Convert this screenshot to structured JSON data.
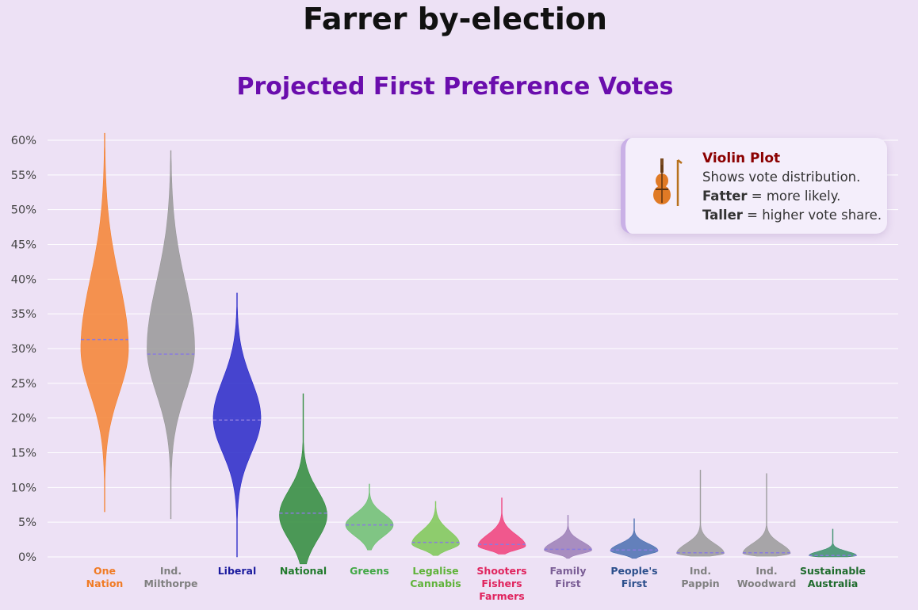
{
  "title": "Farrer by-election",
  "subtitle": "Projected First Preference Votes",
  "legend": {
    "icon": "violin-icon",
    "heading": "Violin Plot",
    "line1": "Shows vote distribution.",
    "line2_bold": "Fatter",
    "line2_rest": " = more likely.",
    "line3_bold": "Taller",
    "line3_rest": " = higher vote share."
  },
  "chart_data": {
    "type": "violin",
    "y_ticks": [
      "0%",
      "5%",
      "10%",
      "15%",
      "20%",
      "25%",
      "30%",
      "35%",
      "40%",
      "45%",
      "50%",
      "55%",
      "60%"
    ],
    "ylim": [
      0,
      60
    ],
    "grid": true,
    "candidates": [
      {
        "label": [
          "One",
          "Nation"
        ],
        "color": "#f58231",
        "labelColor": "#f07b25",
        "median": 31.3,
        "min": 6.5,
        "max": 61,
        "peak": 30,
        "sdLow": 6.5,
        "sdHigh": 10
      },
      {
        "label": [
          "Ind.",
          "Milthorpe"
        ],
        "color": "#989898",
        "labelColor": "#808080",
        "median": 29.2,
        "min": 5.5,
        "max": 58.5,
        "peak": 30,
        "sdLow": 6.5,
        "sdHigh": 9.5
      },
      {
        "label": [
          "Liberal"
        ],
        "color": "#2828c8",
        "labelColor": "#1a1a9e",
        "median": 19.7,
        "min": 0,
        "max": 38,
        "peak": 20,
        "sdLow": 5,
        "sdHigh": 5.5
      },
      {
        "label": [
          "National"
        ],
        "color": "#2e8b3a",
        "labelColor": "#217a2c",
        "median": 6.3,
        "min": -1,
        "max": 23.5,
        "peak": 6,
        "sdLow": 3.5,
        "sdHigh": 3.6
      },
      {
        "label": [
          "Greens"
        ],
        "color": "#6cc070",
        "labelColor": "#41a845",
        "median": 4.6,
        "min": 1,
        "max": 10.5,
        "peak": 4.6,
        "sdLow": 1.6,
        "sdHigh": 1.6
      },
      {
        "label": [
          "Legalise",
          "Cannabis"
        ],
        "color": "#7cc855",
        "labelColor": "#5fb33a",
        "median": 2.1,
        "min": 0.2,
        "max": 8,
        "peak": 1.9,
        "sdLow": 0.8,
        "sdHigh": 1.8
      },
      {
        "label": [
          "Shooters",
          "Fishers",
          "Farmers"
        ],
        "color": "#f0407a",
        "labelColor": "#e0245e",
        "median": 1.8,
        "min": 0.4,
        "max": 8.5,
        "peak": 1.6,
        "sdLow": 0.6,
        "sdHigh": 1.6
      },
      {
        "label": [
          "Family",
          "First"
        ],
        "color": "#9b7eb6",
        "labelColor": "#7b5e96",
        "median": 1.1,
        "min": -0.2,
        "max": 6,
        "peak": 1.0,
        "sdLow": 0.5,
        "sdHigh": 1.2
      },
      {
        "label": [
          "People's",
          "First"
        ],
        "color": "#4a6fb0",
        "labelColor": "#2c4f8c",
        "median": 1.0,
        "min": -0.2,
        "max": 5.5,
        "peak": 0.9,
        "sdLow": 0.5,
        "sdHigh": 1.0
      },
      {
        "label": [
          "Ind.",
          "Pappin"
        ],
        "color": "#9a9a9a",
        "labelColor": "#808080",
        "median": 0.6,
        "min": 0.1,
        "max": 12.5,
        "peak": 0.5,
        "sdLow": 0.3,
        "sdHigh": 1.4
      },
      {
        "label": [
          "Ind.",
          "Woodward"
        ],
        "color": "#9a9a9a",
        "labelColor": "#808080",
        "median": 0.6,
        "min": 0.1,
        "max": 12,
        "peak": 0.5,
        "sdLow": 0.3,
        "sdHigh": 1.4
      },
      {
        "label": [
          "Sustainable",
          "Australia"
        ],
        "color": "#3a8f6a",
        "labelColor": "#1e6b2c",
        "median": 0.2,
        "min": 0,
        "max": 4,
        "peak": 0.2,
        "sdLow": 0.2,
        "sdHigh": 0.6
      }
    ]
  }
}
